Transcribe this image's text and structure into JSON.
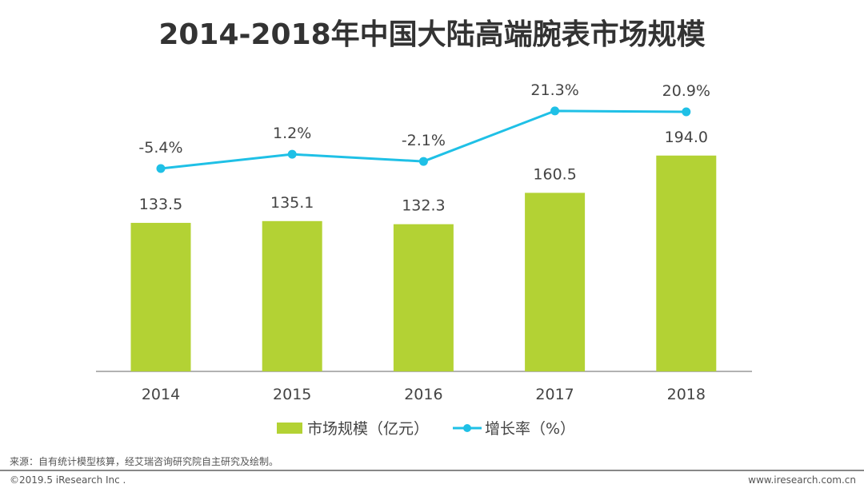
{
  "chart_data": {
    "type": "bar+line",
    "title": "2014-2018年中国大陆高端腕表市场规模",
    "categories": [
      "2014",
      "2015",
      "2016",
      "2017",
      "2018"
    ],
    "series": [
      {
        "name": "市场规模（亿元）",
        "type": "bar",
        "color": "#b3d234",
        "values": [
          133.5,
          135.1,
          132.3,
          160.5,
          194.0
        ],
        "labels": [
          "133.5",
          "135.1",
          "132.3",
          "160.5",
          "194.0"
        ]
      },
      {
        "name": "增长率（%）",
        "type": "line",
        "color": "#1fc0e6",
        "values": [
          -5.4,
          1.2,
          -2.1,
          21.3,
          20.9
        ],
        "labels": [
          "-5.4%",
          "1.2%",
          "-2.1%",
          "21.3%",
          "20.9%"
        ]
      }
    ],
    "grid": false,
    "legend": "bottom"
  },
  "footer": {
    "source": "来源：自有统计模型核算，经艾瑞咨询研究院自主研究及绘制。",
    "copyright": "©2019.5 iResearch Inc .",
    "website": "www.iresearch.com.cn"
  }
}
